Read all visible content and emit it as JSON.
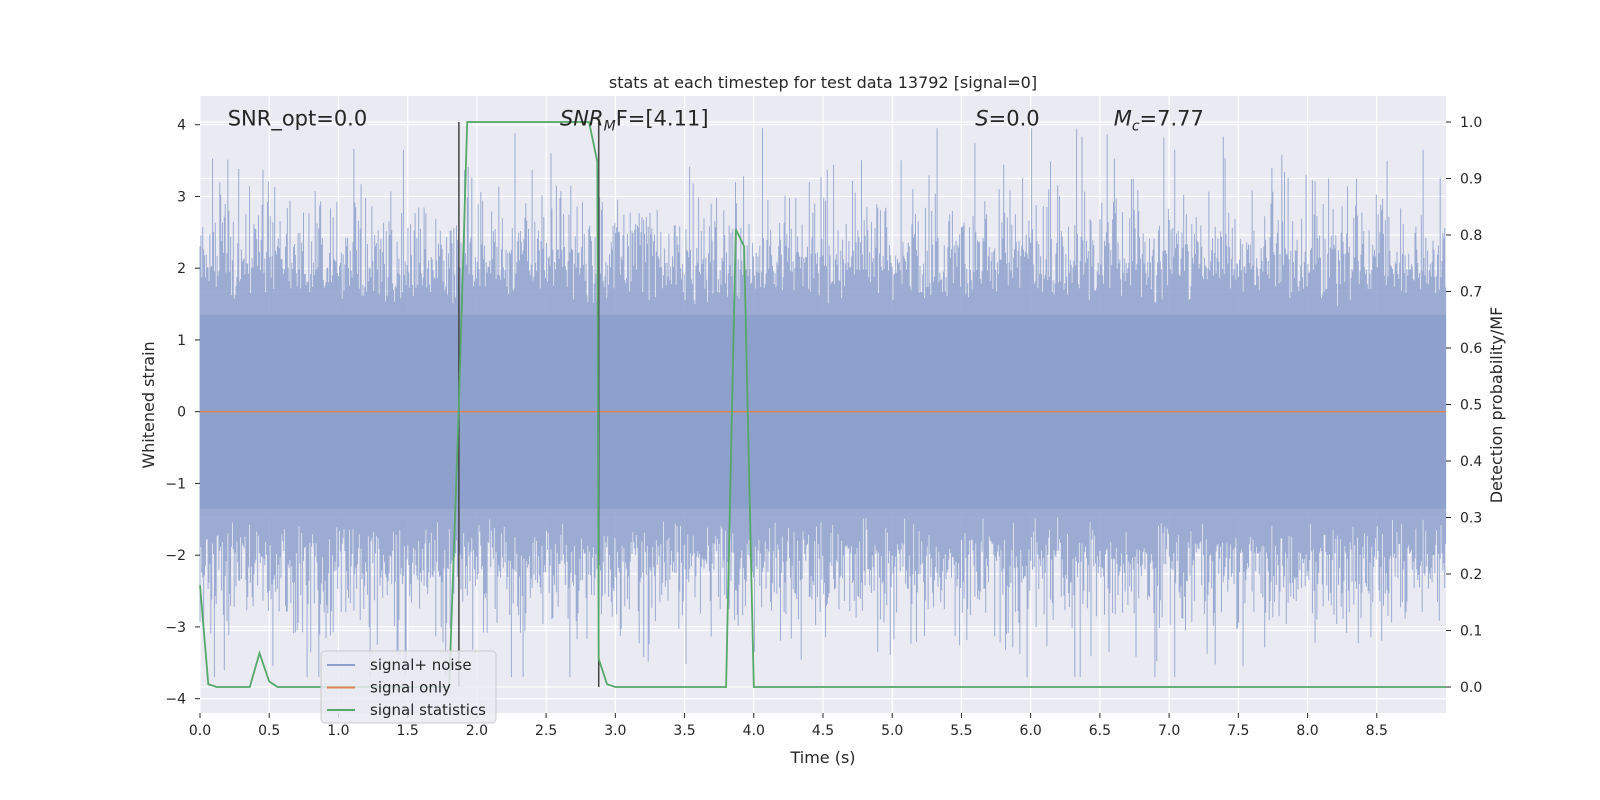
{
  "chart_data": {
    "type": "line",
    "title": "stats at each timestep for test data 13792 [signal=0]",
    "xlabel": "Time (s)",
    "ylabel": "Whitened strain",
    "y2label": "Detection probability/MF",
    "xlim": [
      0.0,
      9.0
    ],
    "ylim": [
      -4.2,
      4.4
    ],
    "y2lim": [
      -0.046,
      1.046
    ],
    "xticks": [
      0.0,
      0.5,
      1.0,
      1.5,
      2.0,
      2.5,
      3.0,
      3.5,
      4.0,
      4.5,
      5.0,
      5.5,
      6.0,
      6.5,
      7.0,
      7.5,
      8.0,
      8.5
    ],
    "yticks": [
      -4,
      -3,
      -2,
      -1,
      0,
      1,
      2,
      3,
      4
    ],
    "y2ticks": [
      0.0,
      0.1,
      0.2,
      0.3,
      0.4,
      0.5,
      0.6,
      0.7,
      0.8,
      0.9,
      1.0
    ],
    "grid": true,
    "legend_position": "lower-left",
    "annotations": [
      {
        "label": "SNR_opt=0.0",
        "x": 0.2,
        "y": 4.0
      },
      {
        "label": "SNR_MF=[4.11]",
        "base": "SNR",
        "sub": "M",
        "rest": "F=[4.11]",
        "x": 2.6,
        "y": 4.0
      },
      {
        "label": "S=0.0",
        "base": "S",
        "rest": "=0.0",
        "x": 5.6,
        "y": 4.0
      },
      {
        "label": "M_c=7.77",
        "base": "M",
        "sub": "c",
        "rest": "=7.77",
        "x": 6.6,
        "y": 4.0
      }
    ],
    "vlines": [
      1.87,
      2.88
    ],
    "series": [
      {
        "name": "signal+ noise",
        "color": "#8da0cb",
        "style": "noise",
        "description_values": {
          "envelope_typical_abs": 2.2,
          "peaks_max": 3.95,
          "trough_min": -3.7,
          "sample_rate_hz": 2048
        }
      },
      {
        "name": "signal only",
        "color": "#dd8452",
        "x": [
          0.0,
          9.0
        ],
        "y": [
          0.0,
          0.0
        ]
      },
      {
        "name": "signal statistics",
        "color": "#55a868",
        "axis": "right",
        "x": [
          0.0,
          0.06,
          0.12,
          0.18,
          0.24,
          0.3,
          0.36,
          0.43,
          0.5,
          0.56,
          0.62,
          0.68,
          1.0,
          1.5,
          1.8,
          1.87,
          1.93,
          2.0,
          2.5,
          2.81,
          2.87,
          2.88,
          2.94,
          3.0,
          3.5,
          3.8,
          3.87,
          3.93,
          4.0,
          4.5,
          5.0,
          6.0,
          7.0,
          8.0,
          9.0
        ],
        "y": [
          0.18,
          0.005,
          0.0,
          0.0,
          0.0,
          0.0,
          0.0,
          0.06,
          0.01,
          0.0,
          0.0,
          0.0,
          0.0,
          0.0,
          0.0,
          0.5,
          1.0,
          1.0,
          1.0,
          1.0,
          0.93,
          0.05,
          0.005,
          0.0,
          0.0,
          0.0,
          0.81,
          0.78,
          0.0,
          0.0,
          0.0,
          0.0,
          0.0,
          0.0,
          0.0
        ]
      }
    ]
  }
}
